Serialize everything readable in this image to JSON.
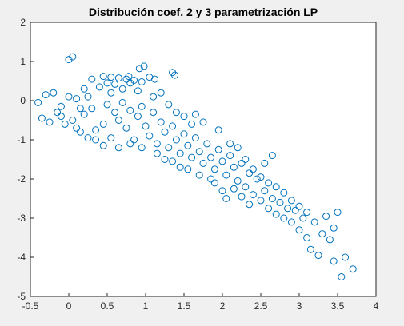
{
  "chart_data": {
    "type": "scatter",
    "title": "Distribución coef. 2 y 3 parametrización LP",
    "xlabel": "",
    "ylabel": "",
    "xlim": [
      -0.5,
      4
    ],
    "ylim": [
      -5,
      2
    ],
    "xticks": [
      "-0.5",
      "0",
      "0.5",
      "1",
      "1.5",
      "2",
      "2.5",
      "3",
      "3.5",
      "4"
    ],
    "yticks": [
      "2",
      "1",
      "0",
      "-1",
      "-2",
      "-3",
      "-4",
      "-5"
    ],
    "grid": false,
    "legend": "none",
    "marker": "open-circle",
    "marker_color": "#0072bd",
    "series": [
      {
        "points": [
          [
            0.0,
            1.05
          ],
          [
            0.05,
            1.12
          ],
          [
            0.98,
            0.88
          ],
          [
            0.92,
            0.82
          ],
          [
            1.35,
            0.72
          ],
          [
            1.38,
            0.65
          ],
          [
            0.3,
            0.55
          ],
          [
            0.45,
            0.62
          ],
          [
            0.55,
            0.6
          ],
          [
            0.65,
            0.58
          ],
          [
            0.75,
            0.55
          ],
          [
            0.85,
            0.52
          ],
          [
            1.05,
            0.6
          ],
          [
            1.12,
            0.55
          ],
          [
            0.8,
            0.45
          ],
          [
            0.6,
            0.42
          ],
          [
            0.4,
            0.35
          ],
          [
            0.2,
            0.3
          ],
          [
            -0.4,
            -0.05
          ],
          [
            -0.3,
            0.15
          ],
          [
            -0.2,
            0.2
          ],
          [
            -0.1,
            -0.15
          ],
          [
            0.0,
            0.1
          ],
          [
            0.1,
            0.05
          ],
          [
            -0.35,
            -0.45
          ],
          [
            -0.25,
            -0.55
          ],
          [
            -0.15,
            -0.3
          ],
          [
            -0.05,
            -0.6
          ],
          [
            0.05,
            -0.5
          ],
          [
            0.15,
            -0.8
          ],
          [
            0.2,
            -0.35
          ],
          [
            0.3,
            -0.2
          ],
          [
            0.35,
            -0.75
          ],
          [
            0.45,
            -0.6
          ],
          [
            0.5,
            -0.1
          ],
          [
            0.55,
            -0.95
          ],
          [
            0.6,
            -0.3
          ],
          [
            0.65,
            -0.5
          ],
          [
            0.7,
            -0.05
          ],
          [
            0.75,
            -0.7
          ],
          [
            0.8,
            -0.25
          ],
          [
            0.85,
            -1.0
          ],
          [
            0.9,
            -0.4
          ],
          [
            0.95,
            -0.15
          ],
          [
            1.0,
            -0.65
          ],
          [
            1.05,
            -0.9
          ],
          [
            1.1,
            -0.3
          ],
          [
            1.15,
            -1.1
          ],
          [
            1.2,
            -0.55
          ],
          [
            1.25,
            -0.8
          ],
          [
            1.3,
            -1.2
          ],
          [
            1.35,
            -0.65
          ],
          [
            1.4,
            -1.0
          ],
          [
            1.45,
            -1.35
          ],
          [
            1.5,
            -0.85
          ],
          [
            1.55,
            -1.15
          ],
          [
            1.6,
            -1.45
          ],
          [
            1.65,
            -0.95
          ],
          [
            1.7,
            -1.3
          ],
          [
            1.75,
            -1.6
          ],
          [
            1.8,
            -1.1
          ],
          [
            1.85,
            -1.45
          ],
          [
            1.9,
            -1.75
          ],
          [
            1.95,
            -1.25
          ],
          [
            2.0,
            -1.55
          ],
          [
            2.05,
            -1.9
          ],
          [
            2.1,
            -1.4
          ],
          [
            2.15,
            -1.7
          ],
          [
            2.2,
            -2.05
          ],
          [
            2.25,
            -1.6
          ],
          [
            2.3,
            -2.2
          ],
          [
            2.35,
            -1.85
          ],
          [
            2.4,
            -2.4
          ],
          [
            2.45,
            -2.0
          ],
          [
            2.5,
            -2.55
          ],
          [
            2.55,
            -2.3
          ],
          [
            2.6,
            -2.75
          ],
          [
            2.65,
            -2.5
          ],
          [
            2.7,
            -2.9
          ],
          [
            2.75,
            -2.6
          ],
          [
            2.8,
            -3.0
          ],
          [
            2.85,
            -2.75
          ],
          [
            2.9,
            -3.1
          ],
          [
            2.95,
            -2.8
          ],
          [
            3.0,
            -3.3
          ],
          [
            3.05,
            -3.0
          ],
          [
            3.1,
            -3.5
          ],
          [
            3.15,
            -3.8
          ],
          [
            3.2,
            -3.1
          ],
          [
            3.25,
            -3.95
          ],
          [
            3.3,
            -3.4
          ],
          [
            3.35,
            -2.95
          ],
          [
            3.4,
            -3.55
          ],
          [
            3.45,
            -3.25
          ],
          [
            3.5,
            -2.85
          ],
          [
            3.45,
            -4.1
          ],
          [
            3.55,
            -4.5
          ],
          [
            3.6,
            -4.0
          ],
          [
            3.7,
            -4.3
          ],
          [
            2.65,
            -1.4
          ],
          [
            2.55,
            -1.6
          ],
          [
            2.1,
            -1.1
          ],
          [
            1.95,
            -0.75
          ],
          [
            1.75,
            -0.55
          ],
          [
            1.9,
            -2.1
          ],
          [
            2.0,
            -2.3
          ],
          [
            1.55,
            -1.75
          ],
          [
            1.25,
            -1.5
          ],
          [
            0.65,
            -1.2
          ],
          [
            0.35,
            -1.0
          ],
          [
            0.55,
            0.2
          ],
          [
            0.7,
            0.3
          ],
          [
            0.9,
            0.25
          ],
          [
            1.1,
            0.1
          ],
          [
            1.2,
            0.2
          ],
          [
            1.3,
            -0.1
          ],
          [
            1.4,
            -0.3
          ],
          [
            1.5,
            -0.4
          ],
          [
            1.6,
            -0.6
          ],
          [
            1.65,
            -0.35
          ],
          [
            2.2,
            -1.2
          ],
          [
            2.3,
            -1.5
          ],
          [
            2.4,
            -1.75
          ],
          [
            2.5,
            -1.95
          ],
          [
            2.6,
            -2.1
          ],
          [
            2.7,
            -2.2
          ],
          [
            2.8,
            -2.35
          ],
          [
            2.9,
            -2.55
          ],
          [
            3.0,
            -2.7
          ],
          [
            3.1,
            -2.85
          ],
          [
            2.35,
            -2.65
          ],
          [
            2.25,
            -2.45
          ],
          [
            2.15,
            -2.25
          ],
          [
            2.05,
            -2.5
          ],
          [
            1.85,
            -2.0
          ],
          [
            1.7,
            -1.9
          ],
          [
            1.45,
            -1.7
          ],
          [
            1.35,
            -1.55
          ],
          [
            1.15,
            -1.35
          ],
          [
            0.95,
            -1.2
          ],
          [
            0.8,
            -1.1
          ],
          [
            0.45,
            -1.15
          ],
          [
            0.25,
            -0.95
          ],
          [
            0.1,
            -0.7
          ],
          [
            -0.1,
            -0.4
          ],
          [
            0.15,
            -0.2
          ],
          [
            0.25,
            0.1
          ],
          [
            0.5,
            0.45
          ],
          [
            0.78,
            0.62
          ],
          [
            0.95,
            0.48
          ]
        ]
      }
    ]
  }
}
